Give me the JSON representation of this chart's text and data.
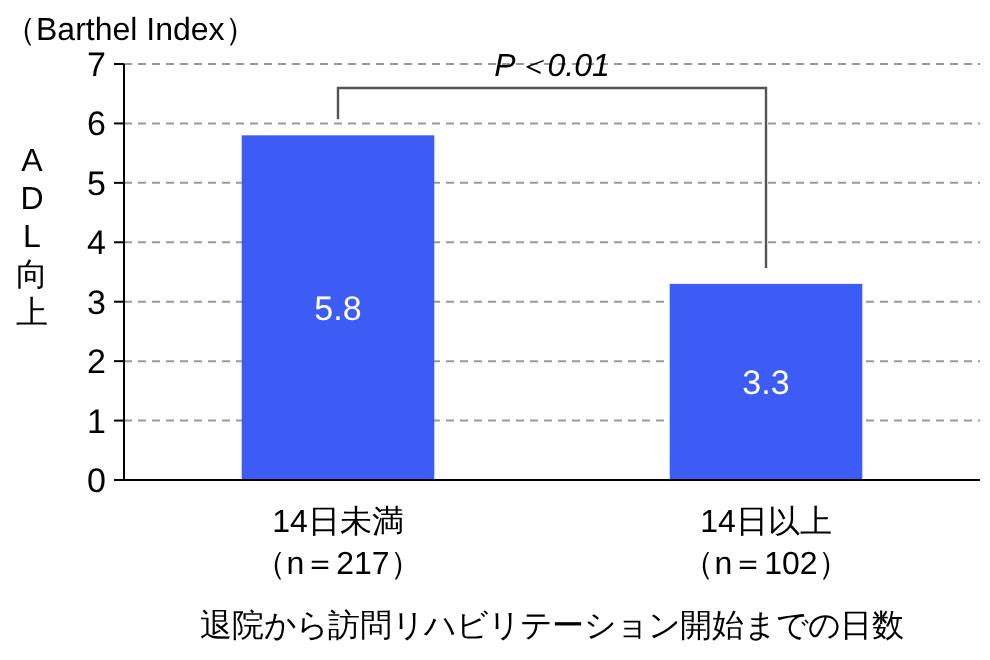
{
  "chart_data": {
    "type": "bar",
    "categories": [
      "14日未満（n＝217）",
      "14日以上（n＝102）"
    ],
    "values": [
      5.8,
      3.3
    ],
    "color": "#3d5cf5",
    "ylim": [
      0,
      7
    ],
    "yticks": [
      0,
      1,
      2,
      3,
      4,
      5,
      6,
      7
    ],
    "grid": "y",
    "data_labels": true,
    "xlabel": "退院から訪問リハビリテーション開始までの日数",
    "ylabel": "ADL向上",
    "annotations": [
      "（Barthel Index）",
      "P＜0.01"
    ]
  }
}
